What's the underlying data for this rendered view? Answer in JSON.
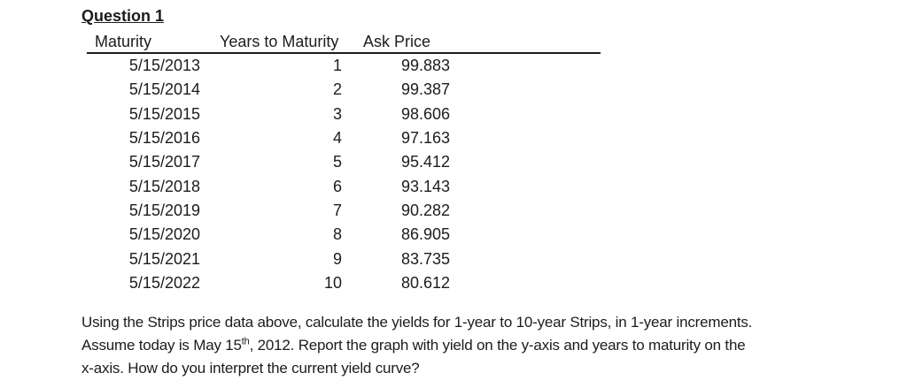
{
  "page": {
    "title": "Question 1"
  },
  "table": {
    "headers": [
      "Maturity",
      "Years to Maturity",
      "Ask Price"
    ],
    "rows": [
      {
        "maturity": "5/15/2013",
        "years": "1",
        "ask_price": "99.883"
      },
      {
        "maturity": "5/15/2014",
        "years": "2",
        "ask_price": "99.387"
      },
      {
        "maturity": "5/15/2015",
        "years": "3",
        "ask_price": "98.606"
      },
      {
        "maturity": "5/15/2016",
        "years": "4",
        "ask_price": "97.163"
      },
      {
        "maturity": "5/15/2017",
        "years": "5",
        "ask_price": "95.412"
      },
      {
        "maturity": "5/15/2018",
        "years": "6",
        "ask_price": "93.143"
      },
      {
        "maturity": "5/15/2019",
        "years": "7",
        "ask_price": "90.282"
      },
      {
        "maturity": "5/15/2020",
        "years": "8",
        "ask_price": "86.905"
      },
      {
        "maturity": "5/15/2021",
        "years": "9",
        "ask_price": "83.735"
      },
      {
        "maturity": "5/15/2022",
        "years": "10",
        "ask_price": "80.612"
      }
    ]
  },
  "paragraph": {
    "line1": "Using the Strips price data above, calculate the yields for 1-year to 10-year Strips, in 1-year increments.",
    "line2_prefix": "Assume today is May 15",
    "line2_sup": "th",
    "line2_suffix": ", 2012. Report the graph with yield on the y-axis and years to maturity on the",
    "line3": "x-axis. How do you interpret the current yield curve?"
  },
  "colors": {
    "text": "#1c1c1c",
    "rule": "#1c1c1c",
    "background": "#ffffff"
  }
}
